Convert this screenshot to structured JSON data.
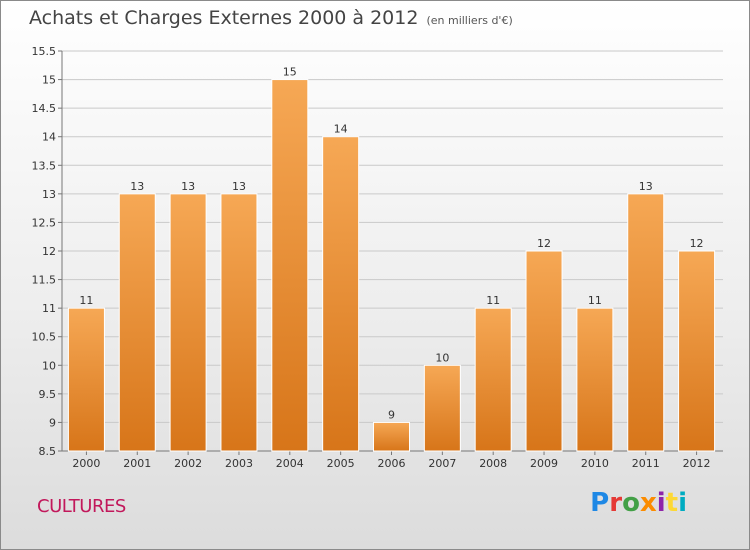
{
  "header": {
    "title": "Achats et Charges Externes 2000 à 2012",
    "unit": "(en milliers d'€)"
  },
  "footer": {
    "label": "CULTURES"
  },
  "logo": {
    "text": "Proxiti",
    "letter_colors": [
      "#1e88e5",
      "#e53935",
      "#43a047",
      "#fb8c00",
      "#8e24aa",
      "#fdd835",
      "#00acc1"
    ]
  },
  "colors": {
    "bar_top": "#f6a855",
    "bar_bottom": "#d77519",
    "bar_border": "#ffffff",
    "grid": "#c9c9c9"
  },
  "chart_data": {
    "type": "bar",
    "title": "Achats et Charges Externes 2000 à 2012",
    "subtitle": "(en milliers d'€)",
    "categories": [
      "2000",
      "2001",
      "2002",
      "2003",
      "2004",
      "2005",
      "2006",
      "2007",
      "2008",
      "2009",
      "2010",
      "2011",
      "2012"
    ],
    "values": [
      11,
      13,
      13,
      13,
      15,
      14,
      9,
      10,
      11,
      12,
      11,
      13,
      12
    ],
    "data_labels": [
      "11",
      "13",
      "13",
      "13",
      "15",
      "14",
      "9",
      "10",
      "11",
      "12",
      "11",
      "13",
      "12"
    ],
    "ylim": [
      8.5,
      15.5
    ],
    "yticks": [
      8.5,
      9,
      9.5,
      10,
      10.5,
      11,
      11.5,
      12,
      12.5,
      13,
      13.5,
      14,
      14.5,
      15,
      15.5
    ],
    "grid": true,
    "xlabel": "",
    "ylabel": ""
  }
}
